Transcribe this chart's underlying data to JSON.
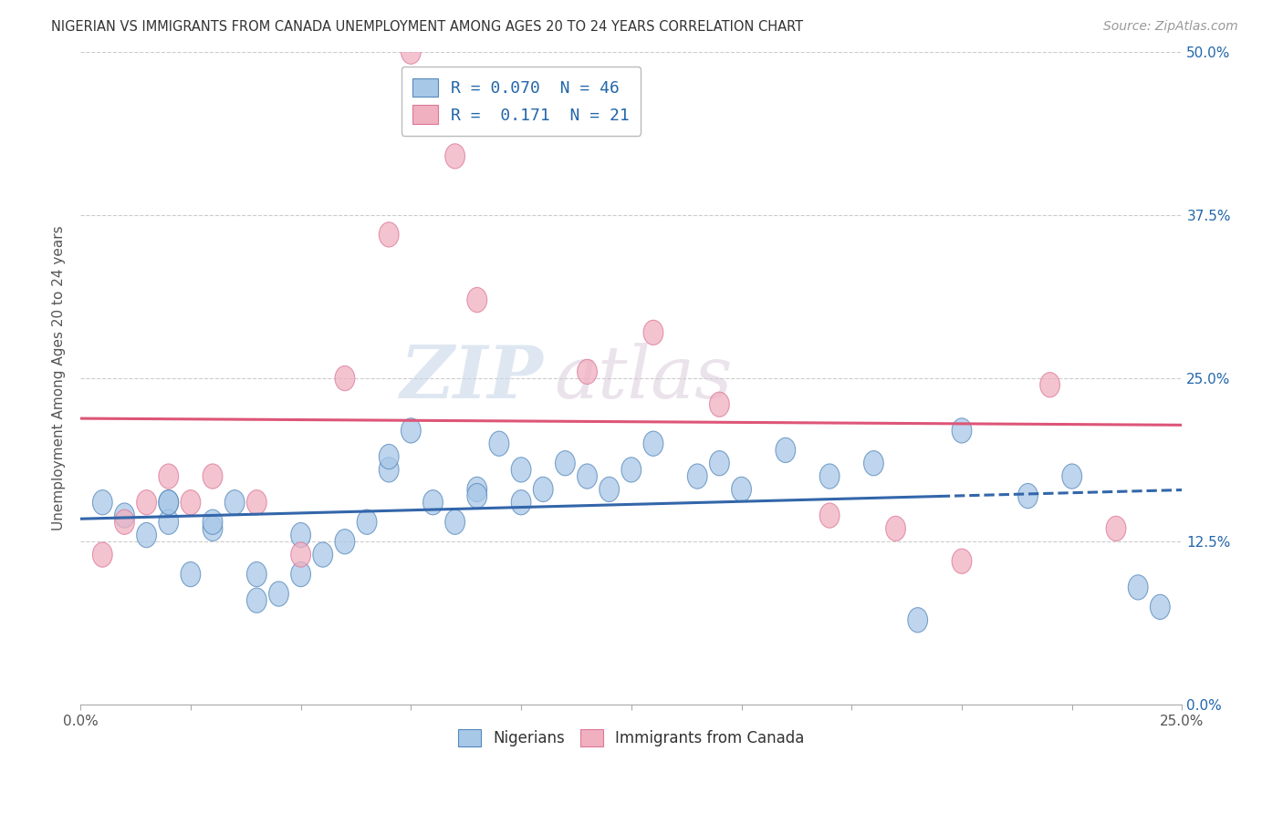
{
  "title": "NIGERIAN VS IMMIGRANTS FROM CANADA UNEMPLOYMENT AMONG AGES 20 TO 24 YEARS CORRELATION CHART",
  "source": "Source: ZipAtlas.com",
  "ylabel": "Unemployment Among Ages 20 to 24 years",
  "xlim": [
    0.0,
    0.25
  ],
  "ylim": [
    0.0,
    0.5
  ],
  "blue_color": "#a8c8e8",
  "pink_color": "#f0b0c0",
  "blue_edge_color": "#5588bb",
  "pink_edge_color": "#dd7799",
  "blue_line_color": "#3366aa",
  "pink_line_color": "#dd5577",
  "watermark_zip": "ZIP",
  "watermark_atlas": "atlas",
  "bg_color": "#ffffff",
  "grid_color": "#cccccc",
  "nigerian_x": [
    0.005,
    0.01,
    0.015,
    0.02,
    0.02,
    0.02,
    0.025,
    0.03,
    0.03,
    0.035,
    0.04,
    0.04,
    0.045,
    0.05,
    0.05,
    0.055,
    0.06,
    0.065,
    0.07,
    0.07,
    0.075,
    0.08,
    0.085,
    0.09,
    0.09,
    0.095,
    0.1,
    0.1,
    0.105,
    0.11,
    0.115,
    0.12,
    0.125,
    0.13,
    0.14,
    0.145,
    0.15,
    0.16,
    0.17,
    0.18,
    0.19,
    0.2,
    0.215,
    0.225,
    0.24,
    0.245
  ],
  "nigerian_y": [
    0.155,
    0.145,
    0.13,
    0.155,
    0.14,
    0.155,
    0.1,
    0.135,
    0.14,
    0.155,
    0.08,
    0.1,
    0.085,
    0.1,
    0.13,
    0.115,
    0.125,
    0.14,
    0.18,
    0.19,
    0.21,
    0.155,
    0.14,
    0.165,
    0.16,
    0.2,
    0.155,
    0.18,
    0.165,
    0.185,
    0.175,
    0.165,
    0.18,
    0.2,
    0.175,
    0.185,
    0.165,
    0.195,
    0.175,
    0.185,
    0.065,
    0.21,
    0.16,
    0.175,
    0.09,
    0.075
  ],
  "canada_x": [
    0.005,
    0.01,
    0.015,
    0.02,
    0.025,
    0.03,
    0.04,
    0.05,
    0.06,
    0.07,
    0.075,
    0.085,
    0.09,
    0.115,
    0.13,
    0.145,
    0.17,
    0.185,
    0.2,
    0.22,
    0.235
  ],
  "canada_y": [
    0.115,
    0.14,
    0.155,
    0.175,
    0.155,
    0.175,
    0.155,
    0.115,
    0.25,
    0.36,
    0.5,
    0.42,
    0.31,
    0.255,
    0.285,
    0.23,
    0.145,
    0.135,
    0.11,
    0.245,
    0.135
  ]
}
